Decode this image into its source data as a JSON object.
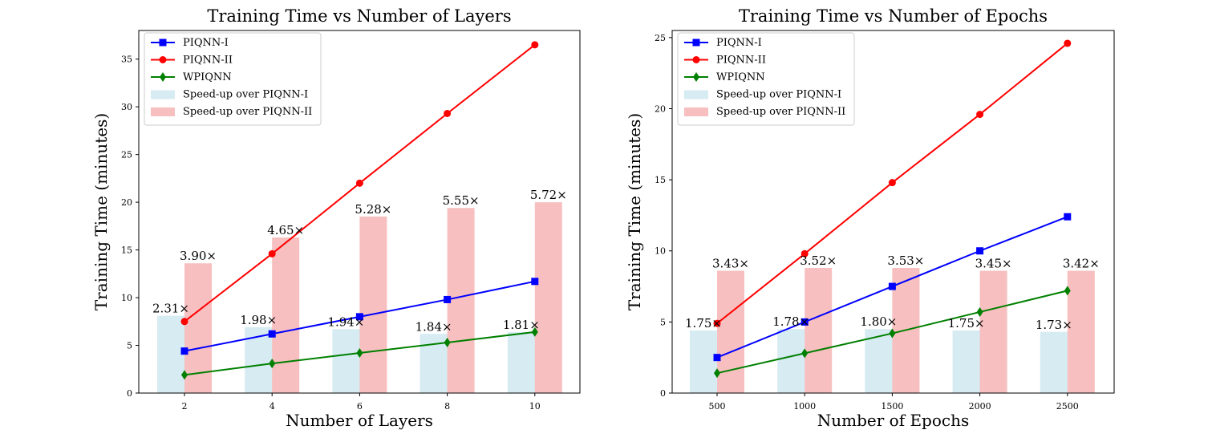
{
  "colors": {
    "piqnn1": "#0000ff",
    "piqnn2": "#ff0000",
    "wpiqnn": "#008000",
    "speedup1_bar": "#add8e6",
    "speedup2_bar": "#f08080"
  },
  "chart_data": [
    {
      "type": "bar+line",
      "title": "Training Time vs Number of Layers",
      "xlabel": "Number of Layers",
      "ylabel": "Training Time (minutes)",
      "categories": [
        "2",
        "4",
        "6",
        "8",
        "10"
      ],
      "ylim": [
        0,
        38
      ],
      "yticks": [
        0,
        5,
        10,
        15,
        20,
        25,
        30,
        35
      ],
      "ytick_labels": [
        "0",
        "5",
        "10",
        "15",
        "20",
        "25",
        "30",
        "35"
      ],
      "legend_position": "top-left",
      "lines": [
        {
          "name": "PIQNN-I",
          "marker": "square",
          "color_key": "piqnn1",
          "values": [
            4.4,
            6.2,
            8.0,
            9.8,
            11.7
          ]
        },
        {
          "name": "PIQNN-II",
          "marker": "circle",
          "color_key": "piqnn2",
          "values": [
            7.5,
            14.6,
            22.0,
            29.3,
            36.5
          ]
        },
        {
          "name": "WPIQNN",
          "marker": "diamond",
          "color_key": "wpiqnn",
          "values": [
            1.9,
            3.1,
            4.2,
            5.3,
            6.4
          ]
        }
      ],
      "bars": [
        {
          "name": "Speed-up over PIQNN-I",
          "color_key": "speedup1_bar",
          "values": [
            8.1,
            6.9,
            6.7,
            6.2,
            6.4
          ],
          "labels": [
            "2.31×",
            "1.98×",
            "1.94×",
            "1.84×",
            "1.81×"
          ]
        },
        {
          "name": "Speed-up over PIQNN-II",
          "color_key": "speedup2_bar",
          "values": [
            13.6,
            16.3,
            18.5,
            19.4,
            20.0
          ],
          "labels": [
            "3.90×",
            "4.65×",
            "5.28×",
            "5.55×",
            "5.72×"
          ]
        }
      ]
    },
    {
      "type": "bar+line",
      "title": "Training Time vs Number of Epochs",
      "xlabel": "Number of Epochs",
      "ylabel": "Training Time (minutes)",
      "categories": [
        "500",
        "1000",
        "1500",
        "2000",
        "2500"
      ],
      "ylim": [
        0,
        25.5
      ],
      "yticks": [
        0,
        5,
        10,
        15,
        20,
        25
      ],
      "ytick_labels": [
        "0",
        "5",
        "10",
        "15",
        "20",
        "25"
      ],
      "legend_position": "top-left",
      "lines": [
        {
          "name": "PIQNN-I",
          "marker": "square",
          "color_key": "piqnn1",
          "values": [
            2.5,
            5.0,
            7.5,
            10.0,
            12.4
          ]
        },
        {
          "name": "PIQNN-II",
          "marker": "circle",
          "color_key": "piqnn2",
          "values": [
            4.9,
            9.8,
            14.8,
            19.6,
            24.6
          ]
        },
        {
          "name": "WPIQNN",
          "marker": "diamond",
          "color_key": "wpiqnn",
          "values": [
            1.4,
            2.8,
            4.2,
            5.7,
            7.2
          ]
        }
      ],
      "bars": [
        {
          "name": "Speed-up over PIQNN-I",
          "color_key": "speedup1_bar",
          "values": [
            4.4,
            4.5,
            4.5,
            4.4,
            4.3
          ],
          "labels": [
            "1.75×",
            "1.78×",
            "1.80×",
            "1.75×",
            "1.73×"
          ]
        },
        {
          "name": "Speed-up over PIQNN-II",
          "color_key": "speedup2_bar",
          "values": [
            8.6,
            8.8,
            8.8,
            8.6,
            8.6
          ],
          "labels": [
            "3.43×",
            "3.52×",
            "3.53×",
            "3.45×",
            "3.42×"
          ]
        }
      ]
    }
  ]
}
